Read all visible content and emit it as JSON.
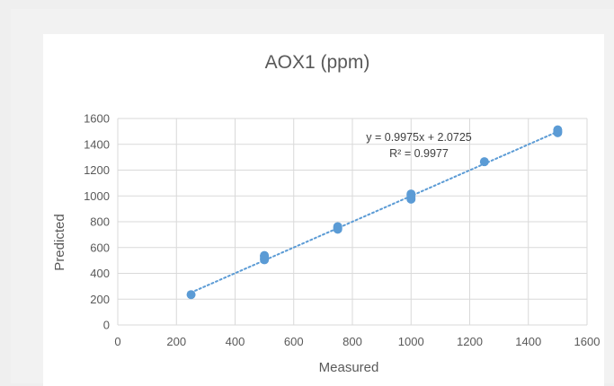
{
  "chart_data": {
    "type": "scatter",
    "title": "AOX1 (ppm)",
    "xlabel": "Measured",
    "ylabel": "Predicted",
    "xlim": [
      0,
      1600
    ],
    "ylim": [
      0,
      1600
    ],
    "xticks": [
      0,
      200,
      400,
      600,
      800,
      1000,
      1200,
      1400,
      1600
    ],
    "yticks": [
      0,
      200,
      400,
      600,
      800,
      1000,
      1200,
      1400,
      1600
    ],
    "grid": true,
    "points": [
      {
        "x": 250,
        "y": 235
      },
      {
        "x": 500,
        "y": 505
      },
      {
        "x": 500,
        "y": 515
      },
      {
        "x": 500,
        "y": 530
      },
      {
        "x": 500,
        "y": 538
      },
      {
        "x": 750,
        "y": 742
      },
      {
        "x": 750,
        "y": 752
      },
      {
        "x": 750,
        "y": 762
      },
      {
        "x": 1000,
        "y": 975
      },
      {
        "x": 1000,
        "y": 990
      },
      {
        "x": 1000,
        "y": 1005
      },
      {
        "x": 1000,
        "y": 1015
      },
      {
        "x": 1250,
        "y": 1265
      },
      {
        "x": 1500,
        "y": 1490
      },
      {
        "x": 1500,
        "y": 1500
      },
      {
        "x": 1500,
        "y": 1512
      }
    ],
    "trendline": {
      "slope": 0.9975,
      "intercept": 2.0725,
      "x_range": [
        250,
        1500
      ],
      "style": "dotted"
    },
    "equation_text": "y = 0.9975x + 2.0725",
    "r2_text": "R² = 0.9977",
    "colors": {
      "marker": "#5b9bd5",
      "trendline": "#5b9bd5",
      "grid": "#d9d9d9",
      "text": "#595959"
    }
  }
}
